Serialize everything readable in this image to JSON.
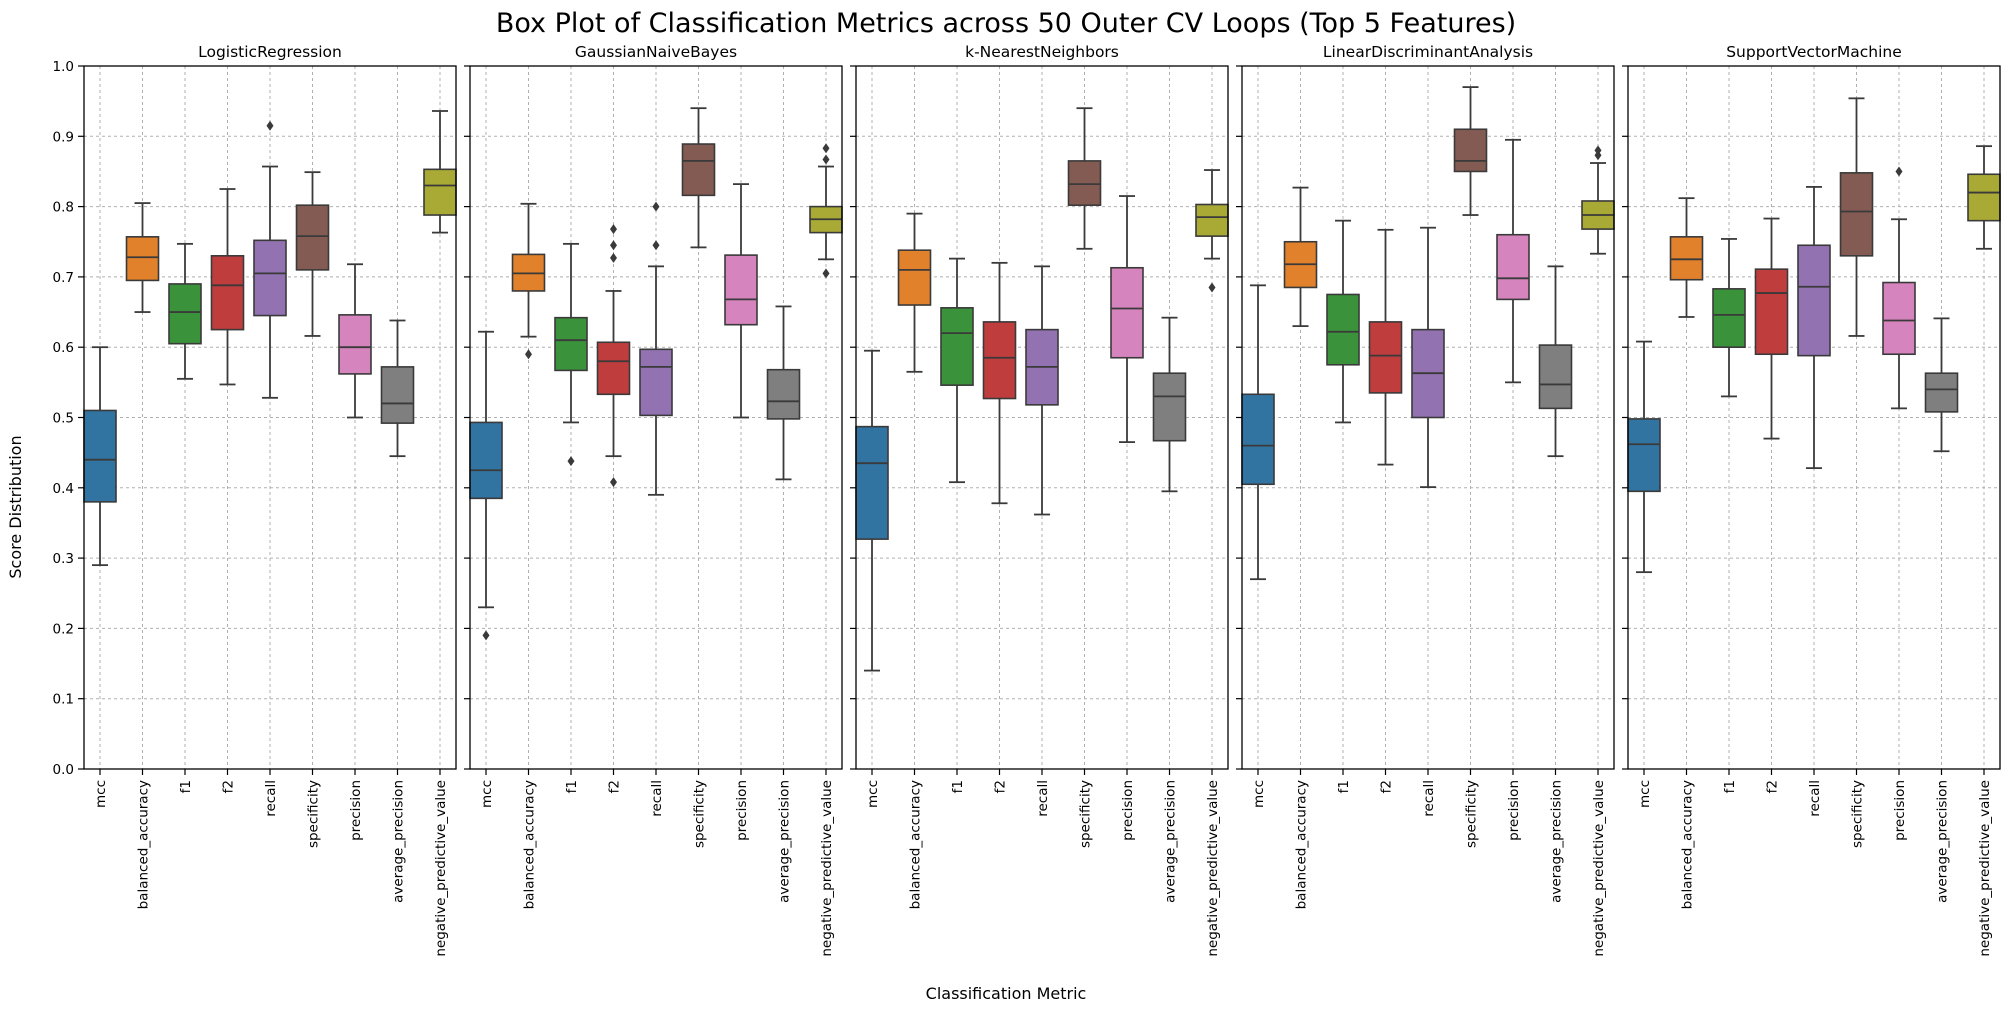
{
  "chart_data": {
    "type": "box",
    "title": "Box Plot of Classification Metrics across 50 Outer CV Loops (Top 5 Features)",
    "xlabel": "Classification Metric",
    "ylabel": "Score Distribution",
    "ylim": [
      0.0,
      1.0
    ],
    "yticks": [
      "0.0",
      "0.1",
      "0.2",
      "0.3",
      "0.4",
      "0.5",
      "0.6",
      "0.7",
      "0.8",
      "0.9",
      "1.0"
    ],
    "grid": true,
    "categories": [
      "mcc",
      "balanced_accuracy",
      "f1",
      "f2",
      "recall",
      "specificity",
      "precision",
      "average_precision",
      "negative_predictive_value"
    ],
    "colors": [
      "#3274a1",
      "#e1812c",
      "#3a923a",
      "#c03d3e",
      "#9372b2",
      "#845b53",
      "#d684bd",
      "#7f7f7f",
      "#a9aa35"
    ],
    "panels": [
      {
        "title": "LogisticRegression",
        "boxes": [
          {
            "whislo": 0.29,
            "q1": 0.38,
            "med": 0.44,
            "q3": 0.51,
            "whishi": 0.6,
            "fliers": []
          },
          {
            "whislo": 0.65,
            "q1": 0.695,
            "med": 0.728,
            "q3": 0.757,
            "whishi": 0.805,
            "fliers": []
          },
          {
            "whislo": 0.555,
            "q1": 0.605,
            "med": 0.65,
            "q3": 0.69,
            "whishi": 0.747,
            "fliers": []
          },
          {
            "whislo": 0.547,
            "q1": 0.625,
            "med": 0.688,
            "q3": 0.73,
            "whishi": 0.825,
            "fliers": []
          },
          {
            "whislo": 0.528,
            "q1": 0.645,
            "med": 0.705,
            "q3": 0.752,
            "whishi": 0.857,
            "fliers": [
              0.915
            ]
          },
          {
            "whislo": 0.616,
            "q1": 0.71,
            "med": 0.758,
            "q3": 0.802,
            "whishi": 0.849,
            "fliers": []
          },
          {
            "whislo": 0.5,
            "q1": 0.562,
            "med": 0.6,
            "q3": 0.646,
            "whishi": 0.718,
            "fliers": []
          },
          {
            "whislo": 0.445,
            "q1": 0.492,
            "med": 0.52,
            "q3": 0.572,
            "whishi": 0.638,
            "fliers": []
          },
          {
            "whislo": 0.763,
            "q1": 0.788,
            "med": 0.83,
            "q3": 0.853,
            "whishi": 0.936,
            "fliers": []
          }
        ]
      },
      {
        "title": "GaussianNaiveBayes",
        "boxes": [
          {
            "whislo": 0.23,
            "q1": 0.385,
            "med": 0.425,
            "q3": 0.493,
            "whishi": 0.622,
            "fliers": [
              0.19
            ]
          },
          {
            "whislo": 0.615,
            "q1": 0.68,
            "med": 0.705,
            "q3": 0.732,
            "whishi": 0.804,
            "fliers": [
              0.59
            ]
          },
          {
            "whislo": 0.493,
            "q1": 0.567,
            "med": 0.61,
            "q3": 0.642,
            "whishi": 0.747,
            "fliers": [
              0.438
            ]
          },
          {
            "whislo": 0.445,
            "q1": 0.533,
            "med": 0.58,
            "q3": 0.607,
            "whishi": 0.68,
            "fliers": [
              0.408,
              0.727,
              0.745,
              0.768
            ]
          },
          {
            "whislo": 0.39,
            "q1": 0.503,
            "med": 0.572,
            "q3": 0.597,
            "whishi": 0.715,
            "fliers": [
              0.745,
              0.8
            ]
          },
          {
            "whislo": 0.742,
            "q1": 0.816,
            "med": 0.865,
            "q3": 0.889,
            "whishi": 0.94,
            "fliers": []
          },
          {
            "whislo": 0.5,
            "q1": 0.632,
            "med": 0.668,
            "q3": 0.731,
            "whishi": 0.832,
            "fliers": []
          },
          {
            "whislo": 0.412,
            "q1": 0.498,
            "med": 0.523,
            "q3": 0.568,
            "whishi": 0.658,
            "fliers": []
          },
          {
            "whislo": 0.725,
            "q1": 0.763,
            "med": 0.782,
            "q3": 0.8,
            "whishi": 0.857,
            "fliers": [
              0.705,
              0.867,
              0.883
            ]
          }
        ]
      },
      {
        "title": "k-NearestNeighbors",
        "boxes": [
          {
            "whislo": 0.14,
            "q1": 0.327,
            "med": 0.435,
            "q3": 0.487,
            "whishi": 0.595,
            "fliers": []
          },
          {
            "whislo": 0.565,
            "q1": 0.66,
            "med": 0.71,
            "q3": 0.738,
            "whishi": 0.79,
            "fliers": []
          },
          {
            "whislo": 0.408,
            "q1": 0.546,
            "med": 0.62,
            "q3": 0.656,
            "whishi": 0.726,
            "fliers": []
          },
          {
            "whislo": 0.378,
            "q1": 0.527,
            "med": 0.585,
            "q3": 0.636,
            "whishi": 0.72,
            "fliers": []
          },
          {
            "whislo": 0.362,
            "q1": 0.518,
            "med": 0.572,
            "q3": 0.625,
            "whishi": 0.715,
            "fliers": []
          },
          {
            "whislo": 0.74,
            "q1": 0.802,
            "med": 0.832,
            "q3": 0.865,
            "whishi": 0.94,
            "fliers": []
          },
          {
            "whislo": 0.465,
            "q1": 0.585,
            "med": 0.655,
            "q3": 0.713,
            "whishi": 0.815,
            "fliers": []
          },
          {
            "whislo": 0.395,
            "q1": 0.467,
            "med": 0.53,
            "q3": 0.563,
            "whishi": 0.642,
            "fliers": []
          },
          {
            "whislo": 0.726,
            "q1": 0.758,
            "med": 0.785,
            "q3": 0.803,
            "whishi": 0.852,
            "fliers": [
              0.685
            ]
          }
        ]
      },
      {
        "title": "LinearDiscriminantAnalysis",
        "boxes": [
          {
            "whislo": 0.27,
            "q1": 0.405,
            "med": 0.46,
            "q3": 0.533,
            "whishi": 0.688,
            "fliers": []
          },
          {
            "whislo": 0.63,
            "q1": 0.685,
            "med": 0.718,
            "q3": 0.75,
            "whishi": 0.827,
            "fliers": []
          },
          {
            "whislo": 0.493,
            "q1": 0.575,
            "med": 0.622,
            "q3": 0.675,
            "whishi": 0.78,
            "fliers": []
          },
          {
            "whislo": 0.433,
            "q1": 0.535,
            "med": 0.588,
            "q3": 0.636,
            "whishi": 0.767,
            "fliers": []
          },
          {
            "whislo": 0.401,
            "q1": 0.5,
            "med": 0.563,
            "q3": 0.625,
            "whishi": 0.77,
            "fliers": []
          },
          {
            "whislo": 0.788,
            "q1": 0.85,
            "med": 0.865,
            "q3": 0.91,
            "whishi": 0.97,
            "fliers": []
          },
          {
            "whislo": 0.55,
            "q1": 0.668,
            "med": 0.698,
            "q3": 0.76,
            "whishi": 0.895,
            "fliers": []
          },
          {
            "whislo": 0.445,
            "q1": 0.513,
            "med": 0.547,
            "q3": 0.603,
            "whishi": 0.715,
            "fliers": []
          },
          {
            "whislo": 0.733,
            "q1": 0.768,
            "med": 0.788,
            "q3": 0.808,
            "whishi": 0.862,
            "fliers": [
              0.873,
              0.88
            ]
          }
        ]
      },
      {
        "title": "SupportVectorMachine",
        "boxes": [
          {
            "whislo": 0.28,
            "q1": 0.395,
            "med": 0.462,
            "q3": 0.498,
            "whishi": 0.608,
            "fliers": []
          },
          {
            "whislo": 0.643,
            "q1": 0.696,
            "med": 0.725,
            "q3": 0.757,
            "whishi": 0.812,
            "fliers": []
          },
          {
            "whislo": 0.53,
            "q1": 0.6,
            "med": 0.646,
            "q3": 0.683,
            "whishi": 0.754,
            "fliers": []
          },
          {
            "whislo": 0.47,
            "q1": 0.59,
            "med": 0.677,
            "q3": 0.711,
            "whishi": 0.783,
            "fliers": []
          },
          {
            "whislo": 0.428,
            "q1": 0.588,
            "med": 0.686,
            "q3": 0.745,
            "whishi": 0.828,
            "fliers": []
          },
          {
            "whislo": 0.616,
            "q1": 0.73,
            "med": 0.793,
            "q3": 0.848,
            "whishi": 0.954,
            "fliers": []
          },
          {
            "whislo": 0.513,
            "q1": 0.59,
            "med": 0.638,
            "q3": 0.692,
            "whishi": 0.782,
            "fliers": [
              0.85
            ]
          },
          {
            "whislo": 0.452,
            "q1": 0.508,
            "med": 0.54,
            "q3": 0.563,
            "whishi": 0.641,
            "fliers": []
          },
          {
            "whislo": 0.74,
            "q1": 0.78,
            "med": 0.82,
            "q3": 0.846,
            "whishi": 0.886,
            "fliers": []
          }
        ]
      }
    ]
  }
}
